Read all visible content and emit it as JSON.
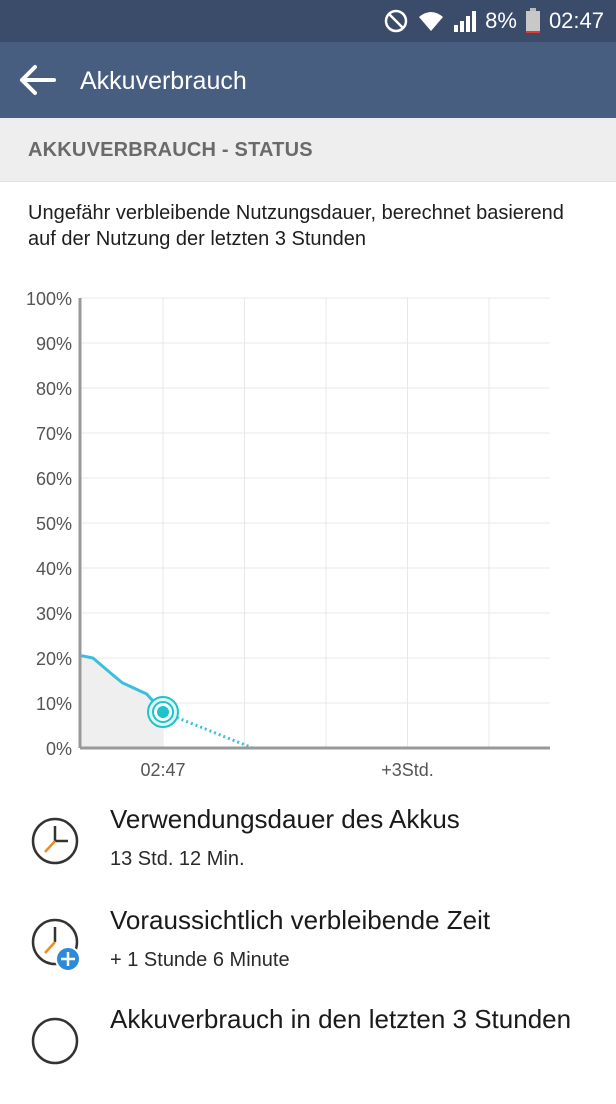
{
  "status_bar": {
    "battery_percent": "8%",
    "time": "02:47",
    "icons": [
      "do-not-disturb-icon",
      "wifi-icon",
      "signal-icon",
      "battery-icon"
    ],
    "battery_level": 0.08
  },
  "app_bar": {
    "title": "Akkuverbrauch",
    "back_icon": "arrow-back-icon"
  },
  "section": {
    "header": "AKKUVERBRAUCH - STATUS",
    "description": "Ungefähr verbleibende Nutzungsdauer, berechnet basierend auf der Nutzung der letzten 3 Stunden"
  },
  "chart_data": {
    "type": "line",
    "y_ticks": [
      "100%",
      "90%",
      "80%",
      "70%",
      "60%",
      "50%",
      "40%",
      "30%",
      "20%",
      "10%",
      "0%"
    ],
    "x_tick_labels": [
      "02:47",
      "+3Std."
    ],
    "ylim": [
      0,
      100
    ],
    "series": [
      {
        "style": "solid",
        "points": [
          {
            "x": -1.0,
            "y": 20.5
          },
          {
            "x": -0.86,
            "y": 20
          },
          {
            "x": -0.6,
            "y": 16
          },
          {
            "x": -0.5,
            "y": 14.5
          },
          {
            "x": -0.2,
            "y": 12
          },
          {
            "x": 0,
            "y": 8
          }
        ]
      },
      {
        "style": "dotted",
        "points": [
          {
            "x": 0,
            "y": 8
          },
          {
            "x": 1.1,
            "y": 0
          }
        ]
      }
    ],
    "current_point": {
      "x": 0,
      "y": 8
    },
    "colors": {
      "line": "#3cbfdc",
      "marker": "#1ec4c8",
      "fill": "#efefef",
      "grid": "#e8e8e8",
      "axis": "#999999"
    }
  },
  "items": [
    {
      "icon": "clock-icon",
      "title": "Verwendungsdauer des Akkus",
      "value": "13 Std. 12 Min."
    },
    {
      "icon": "clock-plus-icon",
      "title": "Voraussichtlich verbleibende Zeit",
      "value": "+ 1 Stunde 6 Minute"
    },
    {
      "icon": "clock-icon",
      "title": "Akkuverbrauch in den letzten 3 Stunden",
      "value": ""
    }
  ]
}
